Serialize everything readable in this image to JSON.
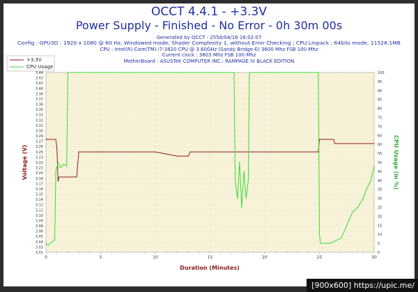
{
  "title_line1": "OCCT 4.4.1 - +3.3V",
  "title_line2": "Power Supply - Finished - No Error - 0h 30m 00s",
  "info_lines": [
    "Generated by OCCT : 2558/04/16 16:02:07",
    "Config : GPU3D : 1920 x 1080 @ 60 Hz, Windowed mode, Shader Complexity 1, without Error Checking ; CPU:Linpack : 64bits mode, 11528.1MB",
    "CPU : Intel(R) Core(TM) i7-3820 CPU @ 3.60GHz (Sandy Bridge-E) 3600 Mhz FSB 100 Mhz",
    "Current clock : 3603 Mhz FSB 100 Mhz",
    "MotherBoard : ASUSTeK COMPUTER INC.: RAMPAGE IV BLACK EDITION"
  ],
  "watermark": "[900x600] https://upic.me/",
  "colors": {
    "voltage": "#8b1a1a",
    "cpu": "#33dd33",
    "title": "#1f2f9f",
    "axis_label_left": "#8b1a1a",
    "axis_label_right": "#33aa33",
    "axis_label_x": "#8b1a1a",
    "plot_bg": "#f7f2d8",
    "outer_border": "#2d2d2d",
    "grid": "#cccccc"
  },
  "chart_data": {
    "type": "line",
    "xlabel": "Duration (Minutes)",
    "ylabel_left": "Voltage (V)",
    "ylabel_right": "CPU Usage (in %)",
    "xlim": [
      0,
      30
    ],
    "ylim_left": [
      3.01,
      3.44
    ],
    "ylim_right": [
      0,
      100
    ],
    "x_ticks": [
      "0",
      "5",
      "10",
      "15",
      "20",
      "25",
      "30"
    ],
    "y_ticks_left": [
      "3.44",
      "3.42",
      "3.41",
      "3.40",
      "3.38",
      "3.37",
      "3.36",
      "3.35",
      "3.33",
      "3.32",
      "3.31",
      "3.30",
      "3.29",
      "3.27",
      "3.26",
      "3.25",
      "3.23",
      "3.22",
      "3.21",
      "3.20",
      "3.18",
      "3.17",
      "3.16",
      "3.15",
      "3.14",
      "3.12",
      "3.11",
      "3.10",
      "3.09",
      "3.08",
      "3.06",
      "3.05",
      "3.04",
      "3.03",
      "3.01"
    ],
    "y_ticks_right": [
      "100",
      "95",
      "90",
      "85",
      "80",
      "75",
      "70",
      "65",
      "60",
      "55",
      "50",
      "45",
      "40",
      "35",
      "30",
      "25",
      "20",
      "15",
      "10",
      "5",
      "0"
    ],
    "grid": true,
    "legend_placement": "top-left",
    "series": [
      {
        "name": "+3.3V",
        "axis": "left",
        "x": [
          0,
          0.9,
          1.0,
          1.1,
          1.2,
          1.5,
          2.8,
          2.9,
          3.0,
          5,
          10,
          12,
          13,
          13.2,
          15,
          17.5,
          18.5,
          20,
          24.9,
          25.0,
          26.3,
          26.4,
          27,
          30
        ],
        "y": [
          3.28,
          3.28,
          3.26,
          3.18,
          3.19,
          3.19,
          3.19,
          3.22,
          3.25,
          3.25,
          3.25,
          3.24,
          3.24,
          3.25,
          3.25,
          3.25,
          3.25,
          3.25,
          3.25,
          3.28,
          3.28,
          3.27,
          3.27,
          3.27
        ]
      },
      {
        "name": "CPU Usage",
        "axis": "right",
        "x": [
          0,
          0.2,
          0.8,
          0.9,
          1.1,
          1.3,
          1.6,
          1.9,
          2.0,
          2.1,
          4,
          8,
          12,
          16,
          17.2,
          17.3,
          17.5,
          17.7,
          17.9,
          18.1,
          18.3,
          18.5,
          18.6,
          18.7,
          20,
          24.9,
          25.0,
          25.1,
          26,
          27,
          27.5,
          28,
          28.5,
          29,
          29.3,
          29.7,
          30
        ],
        "y": [
          5,
          4,
          7,
          45,
          50,
          47,
          49,
          48,
          100,
          100,
          100,
          100,
          100,
          100,
          100,
          40,
          30,
          50,
          25,
          45,
          30,
          40,
          100,
          100,
          100,
          100,
          10,
          5,
          5,
          8,
          15,
          22,
          25,
          30,
          35,
          40,
          48
        ]
      }
    ]
  }
}
